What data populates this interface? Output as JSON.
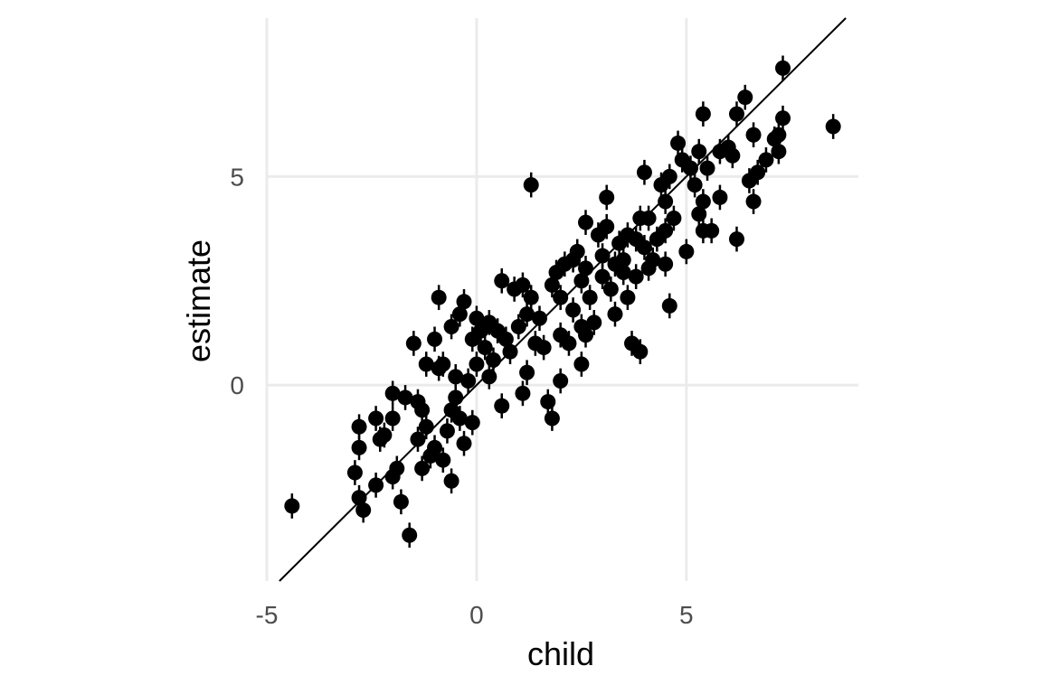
{
  "chart_data": {
    "type": "scatter",
    "title": "",
    "xlabel": "child",
    "ylabel": "estimate",
    "xlim": [
      -5,
      9.1
    ],
    "ylim": [
      -4.7,
      8.8
    ],
    "x_ticks": [
      -5,
      0,
      5
    ],
    "x_tick_labels": [
      "-5",
      "0",
      "5"
    ],
    "y_ticks": [
      0,
      5
    ],
    "y_tick_labels": [
      "0",
      "5"
    ],
    "grid": true,
    "legend": "none",
    "colors": {
      "point": "#000000",
      "grid": "#ebebeb",
      "reference_line": "#000000"
    },
    "reference_line": {
      "kind": "identity",
      "slope": 1,
      "intercept": 0
    },
    "error_bar_half_width": 0.3,
    "points": [
      [
        -4.4,
        -2.9
      ],
      [
        -2.8,
        -2.7
      ],
      [
        -2.7,
        -3.0
      ],
      [
        -2.9,
        -2.1
      ],
      [
        -2.8,
        -1.5
      ],
      [
        -2.8,
        -1.0
      ],
      [
        -2.4,
        -2.4
      ],
      [
        -2.4,
        -0.8
      ],
      [
        -2.3,
        -1.3
      ],
      [
        -2.2,
        -1.2
      ],
      [
        -2.0,
        -2.2
      ],
      [
        -2.0,
        -0.8
      ],
      [
        -2.0,
        -0.2
      ],
      [
        -1.9,
        -2.0
      ],
      [
        -1.8,
        -2.8
      ],
      [
        -1.7,
        -0.3
      ],
      [
        -1.6,
        -3.6
      ],
      [
        -1.5,
        1.0
      ],
      [
        -1.4,
        -1.3
      ],
      [
        -1.4,
        -0.4
      ],
      [
        -1.3,
        -0.6
      ],
      [
        -1.3,
        -2.0
      ],
      [
        -1.2,
        0.5
      ],
      [
        -1.2,
        -1.0
      ],
      [
        -1.1,
        -1.7
      ],
      [
        -1.0,
        1.1
      ],
      [
        -1.0,
        -1.5
      ],
      [
        -0.9,
        2.1
      ],
      [
        -0.9,
        0.4
      ],
      [
        -0.8,
        0.5
      ],
      [
        -0.8,
        -1.8
      ],
      [
        -0.7,
        -1.1
      ],
      [
        -0.6,
        1.4
      ],
      [
        -0.6,
        -0.6
      ],
      [
        -0.6,
        -2.3
      ],
      [
        -0.5,
        0.2
      ],
      [
        -0.5,
        -0.3
      ],
      [
        -0.4,
        1.7
      ],
      [
        -0.4,
        -0.8
      ],
      [
        -0.3,
        2.0
      ],
      [
        -0.3,
        -1.4
      ],
      [
        -0.2,
        0.1
      ],
      [
        -0.1,
        1.1
      ],
      [
        -0.1,
        -0.9
      ],
      [
        0.0,
        1.6
      ],
      [
        0.0,
        0.5
      ],
      [
        0.1,
        1.3
      ],
      [
        0.2,
        0.9
      ],
      [
        0.3,
        1.5
      ],
      [
        0.3,
        0.2
      ],
      [
        0.4,
        0.6
      ],
      [
        0.5,
        1.3
      ],
      [
        0.6,
        2.5
      ],
      [
        0.6,
        -0.5
      ],
      [
        0.7,
        1.1
      ],
      [
        0.8,
        0.8
      ],
      [
        0.9,
        2.3
      ],
      [
        1.0,
        1.4
      ],
      [
        1.1,
        2.4
      ],
      [
        1.1,
        -0.2
      ],
      [
        1.2,
        1.7
      ],
      [
        1.2,
        0.3
      ],
      [
        1.3,
        4.8
      ],
      [
        1.3,
        2.1
      ],
      [
        1.4,
        1.0
      ],
      [
        1.5,
        1.6
      ],
      [
        1.6,
        0.9
      ],
      [
        1.7,
        -0.4
      ],
      [
        1.8,
        2.4
      ],
      [
        1.8,
        -0.8
      ],
      [
        1.9,
        2.7
      ],
      [
        2.0,
        2.1
      ],
      [
        2.0,
        1.2
      ],
      [
        2.0,
        0.1
      ],
      [
        2.1,
        2.9
      ],
      [
        2.2,
        1.0
      ],
      [
        2.3,
        3.0
      ],
      [
        2.3,
        1.8
      ],
      [
        2.4,
        3.2
      ],
      [
        2.5,
        2.5
      ],
      [
        2.5,
        1.4
      ],
      [
        2.5,
        0.5
      ],
      [
        2.6,
        2.8
      ],
      [
        2.6,
        1.2
      ],
      [
        2.6,
        3.9
      ],
      [
        2.7,
        2.1
      ],
      [
        2.8,
        1.5
      ],
      [
        2.9,
        3.6
      ],
      [
        3.0,
        3.1
      ],
      [
        3.0,
        2.6
      ],
      [
        3.1,
        4.5
      ],
      [
        3.1,
        3.8
      ],
      [
        3.2,
        2.3
      ],
      [
        3.3,
        2.9
      ],
      [
        3.3,
        1.7
      ],
      [
        3.4,
        3.4
      ],
      [
        3.5,
        2.7
      ],
      [
        3.5,
        3.0
      ],
      [
        3.6,
        3.6
      ],
      [
        3.6,
        2.1
      ],
      [
        3.7,
        1.0
      ],
      [
        3.8,
        3.5
      ],
      [
        3.8,
        2.6
      ],
      [
        3.9,
        0.8
      ],
      [
        3.9,
        4.0
      ],
      [
        4.0,
        3.3
      ],
      [
        4.0,
        5.1
      ],
      [
        4.1,
        2.8
      ],
      [
        4.1,
        4.0
      ],
      [
        4.2,
        3.0
      ],
      [
        4.3,
        3.5
      ],
      [
        4.4,
        4.8
      ],
      [
        4.5,
        3.7
      ],
      [
        4.5,
        4.4
      ],
      [
        4.5,
        2.9
      ],
      [
        4.6,
        5.0
      ],
      [
        4.6,
        1.9
      ],
      [
        4.7,
        4.0
      ],
      [
        4.8,
        5.8
      ],
      [
        4.9,
        5.4
      ],
      [
        5.0,
        3.2
      ],
      [
        5.1,
        5.2
      ],
      [
        5.2,
        4.8
      ],
      [
        5.3,
        4.1
      ],
      [
        5.3,
        5.6
      ],
      [
        5.4,
        6.5
      ],
      [
        5.4,
        3.7
      ],
      [
        5.4,
        4.4
      ],
      [
        5.5,
        5.2
      ],
      [
        5.6,
        3.7
      ],
      [
        5.8,
        5.6
      ],
      [
        5.8,
        4.5
      ],
      [
        6.0,
        5.7
      ],
      [
        6.1,
        5.5
      ],
      [
        6.2,
        3.5
      ],
      [
        6.2,
        6.5
      ],
      [
        6.4,
        6.9
      ],
      [
        6.5,
        4.9
      ],
      [
        6.6,
        4.4
      ],
      [
        6.6,
        6.0
      ],
      [
        6.7,
        5.1
      ],
      [
        6.9,
        5.4
      ],
      [
        7.1,
        5.9
      ],
      [
        7.2,
        5.6
      ],
      [
        7.2,
        6.0
      ],
      [
        7.3,
        7.6
      ],
      [
        7.3,
        6.4
      ],
      [
        8.5,
        6.2
      ]
    ]
  }
}
